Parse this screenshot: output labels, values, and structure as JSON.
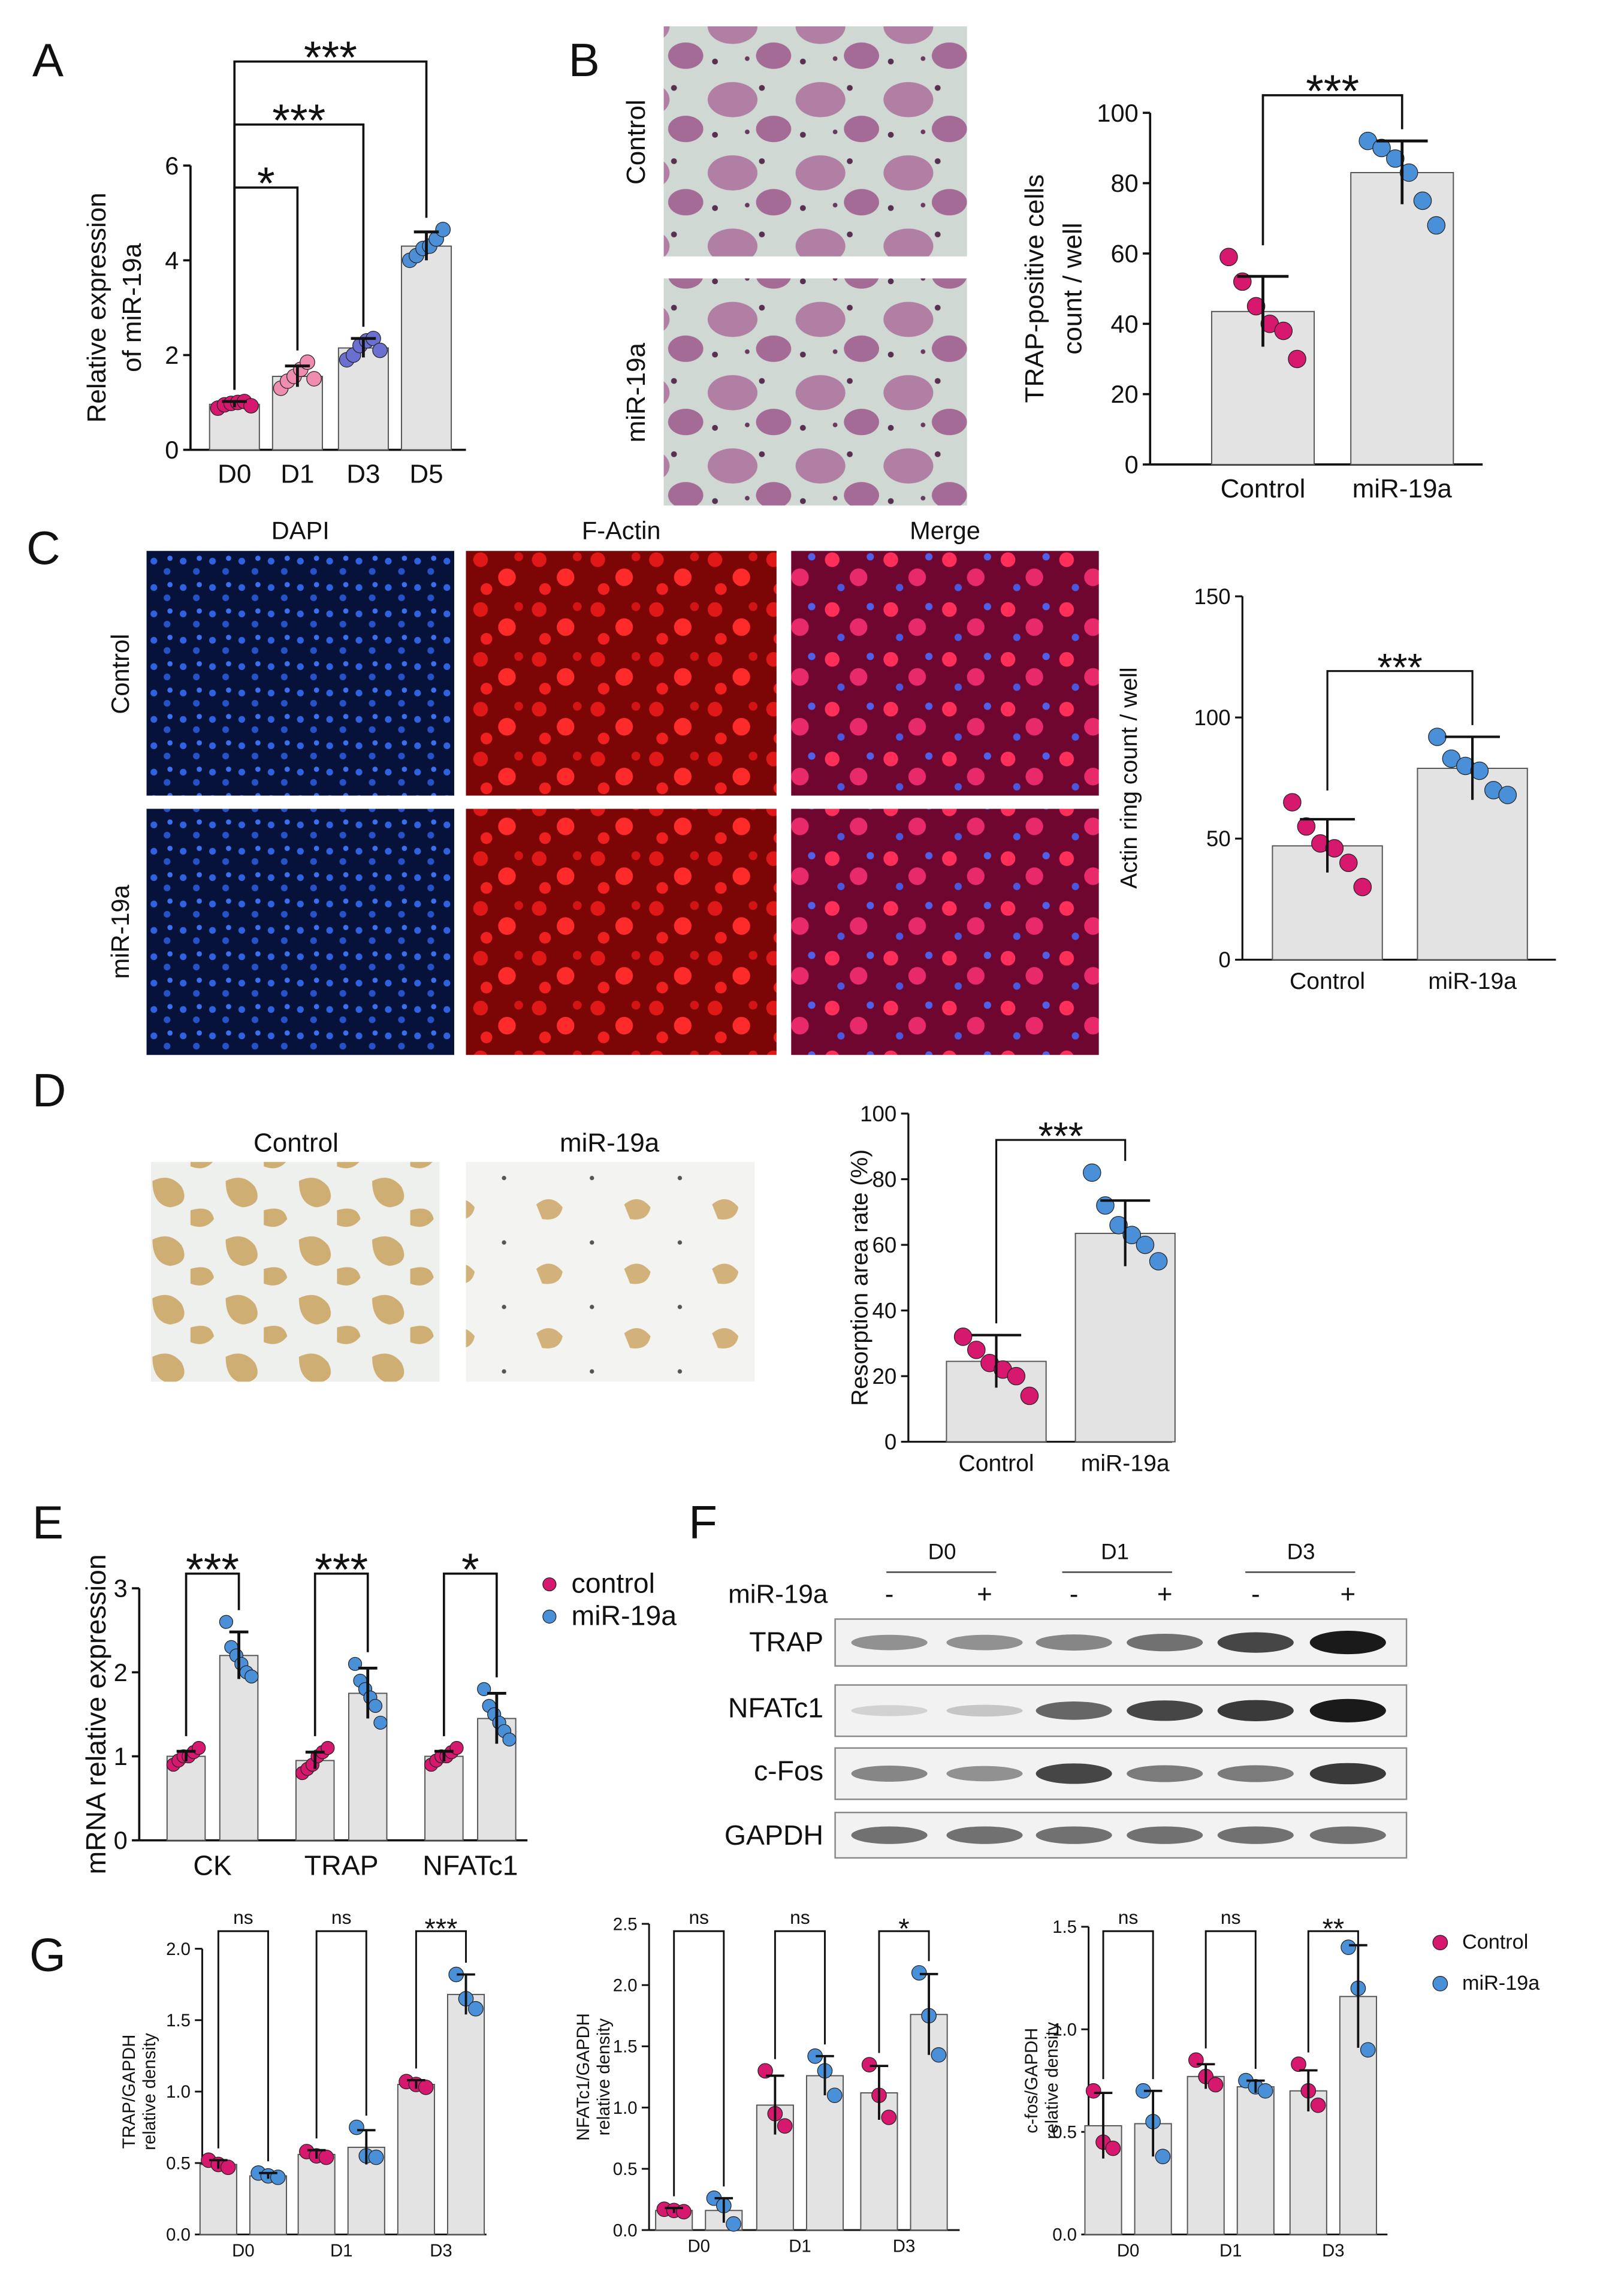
{
  "chart_data": [
    {
      "type": "bar",
      "panel": "A",
      "ylabel": [
        "Relative expression",
        "of miR-19a"
      ],
      "categories": [
        "D0",
        "D1",
        "D3",
        "D5"
      ],
      "ylim": [
        0,
        6
      ],
      "yticks": [
        0,
        2,
        4,
        6
      ],
      "bar_color": "#e3e3e3",
      "point_colors": [
        "#d6186f",
        "#f08cb0",
        "#6b6fcf",
        "#4d8fd6"
      ],
      "series": [
        {
          "values": [
            0.96,
            1.55,
            2.15,
            4.3
          ],
          "errors": [
            0.06,
            0.22,
            0.2,
            0.3
          ],
          "points": [
            [
              0.88,
              0.95,
              0.98,
              1.0,
              1.02,
              0.93
            ],
            [
              1.3,
              1.45,
              1.55,
              1.7,
              1.85,
              1.5
            ],
            [
              1.9,
              2.0,
              2.2,
              2.3,
              2.35,
              2.1
            ],
            [
              4.0,
              4.1,
              4.25,
              4.3,
              4.45,
              4.65
            ]
          ]
        }
      ],
      "significance": [
        "*",
        "***",
        "***"
      ]
    },
    {
      "type": "bar",
      "ylabel": [
        "TRAP-positive cells",
        "count / well"
      ],
      "categories": [
        "Control",
        "miR-19a"
      ],
      "ylim": [
        0,
        100
      ],
      "yticks": [
        0,
        20,
        40,
        60,
        80,
        100
      ],
      "bar_color": "#e3e3e3",
      "point_colors": [
        "#d6186f",
        "#4a90d9"
      ],
      "series": [
        {
          "values": [
            43.5,
            83
          ],
          "errors": [
            10,
            9
          ],
          "points": [
            [
              59,
              52,
              45,
              40,
              38,
              30
            ],
            [
              92,
              90,
              87,
              83,
              75,
              68
            ]
          ]
        }
      ],
      "significance": [
        "***"
      ]
    },
    {
      "type": "bar",
      "panel": "C",
      "ylabel": [
        "Actin ring count / well"
      ],
      "categories": [
        "Control",
        "miR-19a"
      ],
      "ylim": [
        0,
        150
      ],
      "yticks": [
        0,
        50,
        100,
        150
      ],
      "bar_color": "#e3e3e3",
      "point_colors": [
        "#d6186f",
        "#4a90d9"
      ],
      "series": [
        {
          "values": [
            47,
            79
          ],
          "errors": [
            11,
            13
          ],
          "points": [
            [
              65,
              55,
              48,
              46,
              40,
              30
            ],
            [
              92,
              83,
              80,
              78,
              70,
              68
            ]
          ]
        }
      ],
      "significance": [
        "***"
      ]
    },
    {
      "type": "bar",
      "panel": "D",
      "ylabel": [
        "Resorption area rate (%)"
      ],
      "categories": [
        "Control",
        "miR-19a"
      ],
      "ylim": [
        0,
        100
      ],
      "yticks": [
        0,
        20,
        40,
        60,
        80,
        100
      ],
      "bar_color": "#e3e3e3",
      "point_colors": [
        "#d6186f",
        "#4a90d9"
      ],
      "series": [
        {
          "values": [
            24.5,
            63.5
          ],
          "errors": [
            8,
            10
          ],
          "points": [
            [
              32,
              28,
              24,
              22,
              20,
              14
            ],
            [
              82,
              72,
              66,
              63,
              60,
              55
            ]
          ]
        }
      ],
      "significance": [
        "***"
      ]
    },
    {
      "type": "bar",
      "panel": "E",
      "ylabel": [
        "mRNA relative expression"
      ],
      "categories": [
        "CK",
        "TRAP",
        "NFATc1"
      ],
      "ylim": [
        0,
        3
      ],
      "yticks": [
        0,
        1,
        2,
        3
      ],
      "bar_color": "#e3e3e3",
      "series": [
        {
          "name": "control",
          "color": "#d6186f",
          "values": [
            1.0,
            0.95,
            1.0
          ],
          "errors": [
            0.06,
            0.1,
            0.06
          ],
          "points": [
            [
              0.9,
              0.95,
              1.0,
              1.0,
              1.05,
              1.1
            ],
            [
              0.8,
              0.85,
              0.9,
              1.0,
              1.05,
              1.1
            ],
            [
              0.9,
              0.95,
              1.0,
              1.0,
              1.05,
              1.1
            ]
          ]
        },
        {
          "name": "miR-19a",
          "color": "#4a90d9",
          "values": [
            2.2,
            1.75,
            1.45
          ],
          "errors": [
            0.28,
            0.3,
            0.3
          ],
          "points": [
            [
              2.6,
              2.3,
              2.2,
              2.1,
              2.0,
              1.95
            ],
            [
              2.1,
              1.9,
              1.8,
              1.7,
              1.6,
              1.4
            ],
            [
              1.8,
              1.6,
              1.5,
              1.4,
              1.3,
              1.2
            ]
          ]
        }
      ],
      "significance": [
        "***",
        "***",
        "*"
      ]
    },
    {
      "type": "bar",
      "panel": "G",
      "ylabel": [
        "TRAP/GAPDH",
        "relative density"
      ],
      "categories": [
        "D0",
        "D1",
        "D3"
      ],
      "ylim": [
        0,
        2
      ],
      "yticks": [
        {
          "value": 0,
          "label": "0.0"
        },
        0.5,
        {
          "value": 1,
          "label": "1.0"
        },
        1.5,
        {
          "value": 2,
          "label": "2.0"
        }
      ],
      "bar_color": "#e3e3e3",
      "series": [
        {
          "color": "#d6186f",
          "values": [
            0.49,
            0.56,
            1.05
          ],
          "errors": [
            0.03,
            0.03,
            0.03
          ],
          "points": [
            [
              0.52,
              0.49,
              0.47
            ],
            [
              0.58,
              0.55,
              0.54
            ],
            [
              1.07,
              1.05,
              1.03
            ]
          ]
        },
        {
          "color": "#4a90d9",
          "values": [
            0.41,
            0.61,
            1.68
          ],
          "errors": [
            0.02,
            0.12,
            0.14
          ],
          "points": [
            [
              0.43,
              0.41,
              0.4
            ],
            [
              0.75,
              0.55,
              0.54
            ],
            [
              1.82,
              1.65,
              1.58
            ]
          ]
        }
      ],
      "significance": [
        "ns",
        "ns",
        "***"
      ]
    },
    {
      "type": "bar",
      "ylabel": [
        "NFATc1/GAPDH",
        "relative density"
      ],
      "categories": [
        "D0",
        "D1",
        "D3"
      ],
      "ylim": [
        0,
        2.5
      ],
      "yticks": [
        {
          "value": 0,
          "label": "0.0"
        },
        0.5,
        {
          "value": 1,
          "label": "1.0"
        },
        1.5,
        {
          "value": 2,
          "label": "2.0"
        },
        2.5
      ],
      "bar_color": "#e3e3e3",
      "series": [
        {
          "color": "#d6186f",
          "values": [
            0.16,
            1.02,
            1.12
          ],
          "errors": [
            0.02,
            0.24,
            0.22
          ],
          "points": [
            [
              0.17,
              0.16,
              0.15
            ],
            [
              1.3,
              0.95,
              0.85
            ],
            [
              1.35,
              1.1,
              0.92
            ]
          ]
        },
        {
          "color": "#4a90d9",
          "values": [
            0.16,
            1.26,
            1.76
          ],
          "errors": [
            0.1,
            0.16,
            0.33
          ],
          "points": [
            [
              0.26,
              0.2,
              0.05
            ],
            [
              1.42,
              1.3,
              1.1
            ],
            [
              2.1,
              1.75,
              1.43
            ]
          ]
        }
      ],
      "significance": [
        "ns",
        "ns",
        "*"
      ]
    },
    {
      "type": "bar",
      "ylabel": [
        "c-fos/GAPDH",
        "relative density"
      ],
      "categories": [
        "D0",
        "D1",
        "D3"
      ],
      "ylim": [
        0,
        1.5
      ],
      "yticks": [
        {
          "value": 0,
          "label": "0.0"
        },
        0.5,
        {
          "value": 1,
          "label": "1.0"
        },
        1.5
      ],
      "bar_color": "#e3e3e3",
      "series": [
        {
          "name": "Control",
          "color": "#d6186f",
          "values": [
            0.53,
            0.77,
            0.7
          ],
          "errors": [
            0.16,
            0.06,
            0.1
          ],
          "points": [
            [
              0.7,
              0.45,
              0.42
            ],
            [
              0.85,
              0.77,
              0.73
            ],
            [
              0.83,
              0.7,
              0.63
            ]
          ]
        },
        {
          "name": "miR-19a",
          "color": "#4a90d9",
          "values": [
            0.54,
            0.72,
            1.16
          ],
          "errors": [
            0.16,
            0.03,
            0.25
          ],
          "points": [
            [
              0.7,
              0.55,
              0.38
            ],
            [
              0.75,
              0.72,
              0.7
            ],
            [
              1.4,
              1.2,
              0.9
            ]
          ]
        }
      ],
      "significance": [
        "ns",
        "ns",
        "**"
      ]
    }
  ],
  "image_panels": [
    {
      "panel": "B",
      "row_labels": [
        "Control",
        "miR-19a"
      ]
    },
    {
      "column_labels": [
        "DAPI",
        "F-Actin",
        "Merge"
      ],
      "row_labels": [
        "Control",
        "miR-19a"
      ]
    },
    {
      "column_labels": [
        "Control",
        "miR-19a"
      ]
    }
  ],
  "blot": {
    "panel": "F",
    "days": [
      "D0",
      "D1",
      "D3"
    ],
    "treatment_label": "miR-19a",
    "treatment_marks": [
      "-",
      "+",
      "-",
      "+",
      "-",
      "+"
    ],
    "proteins": [
      "TRAP",
      "NFATc1",
      "c-Fos",
      "GAPDH"
    ]
  }
}
